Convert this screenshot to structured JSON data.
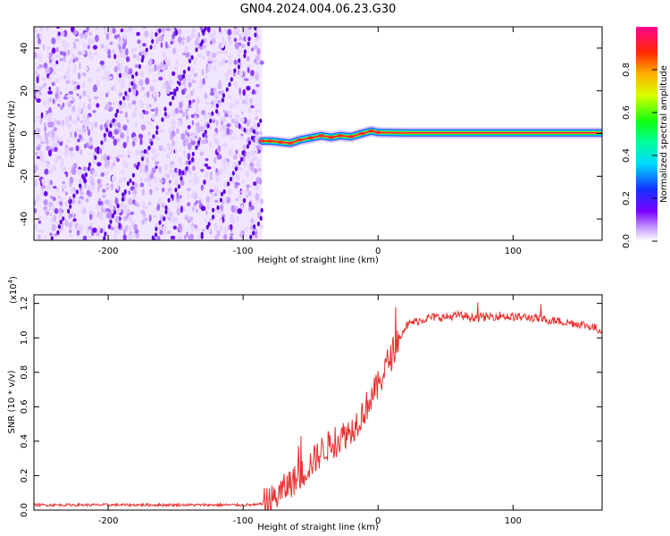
{
  "figure": {
    "title": "GN04.2024.004.06.23.G30"
  },
  "chart_data": [
    {
      "type": "heatmap",
      "xlabel": "Height of straight line (km)",
      "ylabel": "Frequency (Hz)",
      "xlim": [
        -255,
        166
      ],
      "ylim": [
        -50,
        50
      ],
      "xticks": [
        -200,
        -100,
        0,
        100
      ],
      "yticks": [
        -40,
        -20,
        0,
        20,
        40
      ],
      "grid": false,
      "noise_region_x": [
        -255,
        -86
      ],
      "signal_trace": {
        "x": [
          -86,
          -80,
          -72,
          -65,
          -58,
          -50,
          -42,
          -35,
          -28,
          -20,
          -12,
          -5,
          0,
          20,
          60,
          100,
          166
        ],
        "freq": [
          -3.5,
          -3.5,
          -4.0,
          -4.5,
          -3.0,
          -2.0,
          -1.0,
          -1.8,
          -1.0,
          -1.5,
          0.0,
          1.2,
          0.5,
          0.3,
          0.3,
          0.3,
          0.3
        ]
      },
      "colorbar": {
        "label": "Normalized spectral amplitude",
        "ticks": [
          0.0,
          0.2,
          0.4,
          0.6,
          0.8
        ],
        "range": [
          0,
          1
        ]
      }
    },
    {
      "type": "line",
      "xlabel": "Height of straight line (km)",
      "ylabel": "SNR (10 * v/v)",
      "yscale_note_base": "(x10",
      "yscale_note_exp": "4",
      "yscale_note_close": ")",
      "xlim": [
        -255,
        166
      ],
      "ylim": [
        0,
        1.25
      ],
      "xticks": [
        -200,
        -100,
        0,
        100
      ],
      "yticks": [
        0.0,
        0.2,
        0.4,
        0.6,
        0.8,
        1.0,
        1.2
      ],
      "grid": false,
      "color": "#e8302e",
      "series": [
        {
          "x": [
            -255,
            -200,
            -150,
            -100,
            -90,
            -80,
            -75,
            -70,
            -65,
            -60,
            -55,
            -50,
            -45,
            -40,
            -35,
            -30,
            -25,
            -20,
            -15,
            -10,
            -5,
            0,
            5,
            10,
            15,
            20,
            25,
            30,
            40,
            50,
            60,
            70,
            80,
            90,
            100,
            110,
            120,
            130,
            140,
            150,
            160,
            166
          ],
          "values": [
            0.03,
            0.03,
            0.03,
            0.03,
            0.03,
            0.05,
            0.08,
            0.12,
            0.16,
            0.18,
            0.22,
            0.27,
            0.31,
            0.36,
            0.38,
            0.4,
            0.44,
            0.46,
            0.52,
            0.58,
            0.66,
            0.72,
            0.82,
            0.9,
            1.0,
            1.06,
            1.09,
            1.1,
            1.12,
            1.12,
            1.13,
            1.12,
            1.12,
            1.13,
            1.12,
            1.12,
            1.11,
            1.1,
            1.09,
            1.08,
            1.06,
            1.04
          ]
        }
      ]
    }
  ]
}
